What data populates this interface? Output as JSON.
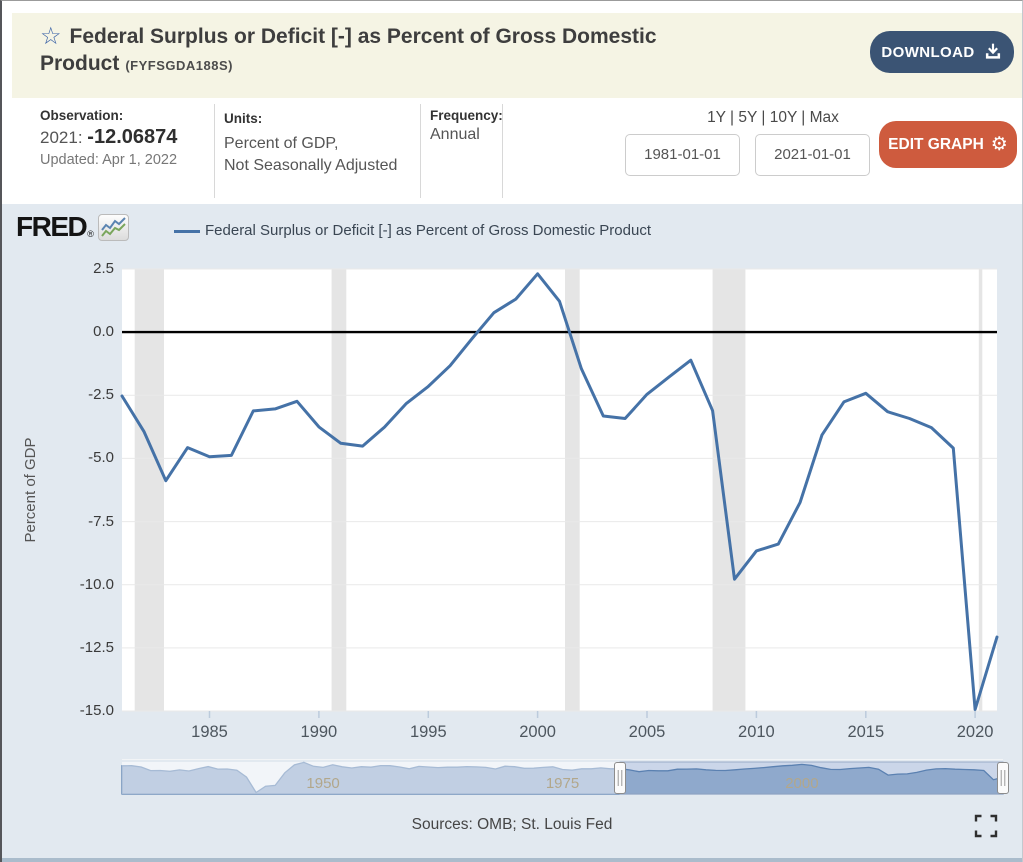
{
  "header": {
    "star_icon": "☆",
    "title_line1": "Federal Surplus or Deficit [-] as Percent of Gross Domestic",
    "title_line2": "Product",
    "series_id": "(FYFSGDA188S)",
    "download_label": "DOWNLOAD"
  },
  "info_bar": {
    "observation": {
      "label": "Observation:",
      "period": "2021:",
      "value": "-12.06874",
      "updated": "Updated: Apr 1, 2022"
    },
    "units": {
      "label": "Units:",
      "line1": "Percent of GDP,",
      "line2": "Not Seasonally Adjusted"
    },
    "frequency": {
      "label": "Frequency:",
      "value": "Annual"
    },
    "range_links": "1Y | 5Y | 10Y | Max",
    "date_start": "1981-01-01",
    "date_end": "2021-01-01",
    "edit_graph_label": "EDIT GRAPH",
    "gear_icon": "⚙"
  },
  "graph": {
    "brand": "FRED",
    "brand_reg": "®",
    "legend_label": "Federal Surplus or Deficit [-] as Percent of Gross Domestic Product",
    "sources": "Sources: OMB; St. Louis Fed"
  },
  "chart_data": {
    "type": "line",
    "title": "Federal Surplus or Deficit [-] as Percent of Gross Domestic Product",
    "ylabel": "Percent of GDP",
    "x_start": 1981,
    "x_end": 2021,
    "ylim": [
      -15.0,
      2.5
    ],
    "yticks": [
      2.5,
      0.0,
      -2.5,
      -5.0,
      -7.5,
      -10.0,
      -12.5,
      -15.0
    ],
    "ytick_labels": [
      "2.5",
      "0.0",
      "-2.5",
      "-5.0",
      "-7.5",
      "-10.0",
      "-12.5",
      "-15.0"
    ],
    "xticks": [
      1985,
      1990,
      1995,
      2000,
      2005,
      2010,
      2015,
      2020
    ],
    "grid": true,
    "zero_line": 0,
    "series": [
      {
        "name": "Federal Surplus or Deficit [-] as Percent of Gross Domestic Product",
        "color": "#4572a7",
        "x_years_from": 1981,
        "values": [
          -2.53,
          -3.93,
          -5.88,
          -4.57,
          -4.93,
          -4.88,
          -3.12,
          -3.04,
          -2.74,
          -3.75,
          -4.4,
          -4.51,
          -3.76,
          -2.82,
          -2.15,
          -1.33,
          -0.26,
          0.77,
          1.31,
          2.31,
          1.22,
          -1.45,
          -3.32,
          -3.42,
          -2.46,
          -1.78,
          -1.11,
          -3.11,
          -9.78,
          -8.66,
          -8.39,
          -6.74,
          -4.07,
          -2.76,
          -2.42,
          -3.15,
          -3.42,
          -3.78,
          -4.59,
          -14.94,
          -12.07
        ]
      }
    ],
    "recessions": [
      [
        1981.58,
        1982.92
      ],
      [
        1990.58,
        1991.25
      ],
      [
        2001.25,
        2001.92
      ],
      [
        2008.0,
        2009.5
      ],
      [
        2020.17,
        2020.33
      ]
    ],
    "navigator": {
      "x_start": 1929,
      "x_end": 2021,
      "ylim": [
        -31,
        5
      ],
      "labels": [
        1950,
        1975,
        2000
      ],
      "selection": [
        1981,
        2021
      ],
      "values_1929_1980": [
        0.74,
        0.85,
        -0.6,
        -4.65,
        -4.57,
        -5.43,
        -3.91,
        -5.1,
        -2.41,
        -0.14,
        -3.04,
        -2.93,
        -4.28,
        -12.04,
        -29.3,
        -22.2,
        -21.3,
        -7.2,
        1.7,
        4.5,
        0.2,
        -1.1,
        1.9,
        -0.4,
        -1.7,
        -0.3,
        -0.8,
        0.9,
        0.8,
        -0.6,
        -2.6,
        0.1,
        -0.6,
        -1.3,
        -0.8,
        -0.9,
        -0.2,
        -0.5,
        -1.1,
        -2.9,
        0.3,
        -0.3,
        -2.1,
        -2.0,
        -1.1,
        -0.4,
        -3.4,
        -4.2,
        -2.7,
        -2.7,
        -1.6,
        -2.7
      ]
    },
    "colors": {
      "line": "#4572a7",
      "recession": "#e5e5e5",
      "grid": "#e9e9e9",
      "zero_line": "#000000",
      "plot_bg": "#ffffff",
      "panel_bg": "#e2e9f0",
      "nav_area_fill": "#8fa9cc",
      "nav_area_stroke": "#5b81b1",
      "nav_selection_bg": "#cbd6e9",
      "nav_outside_bg": "#f1f4f8",
      "nav_label": "#b2a78b",
      "tick": "#bccbdc"
    }
  }
}
